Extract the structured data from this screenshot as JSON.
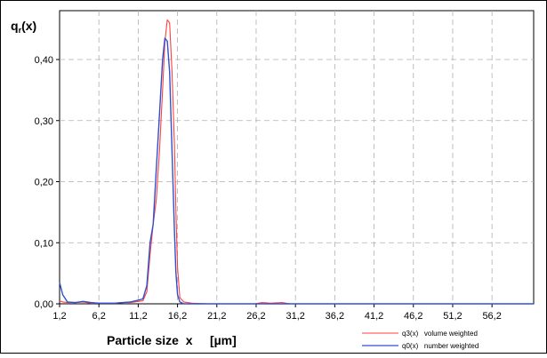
{
  "chart_data": {
    "type": "line",
    "ylabel_main": "q",
    "ylabel_sub": "r",
    "ylabel_tail": "(x)",
    "xlabel": "Particle size  x     [µm]",
    "xlim": [
      1.2,
      61.5
    ],
    "ylim": [
      0,
      0.48
    ],
    "xticks": [
      "1,2",
      "6,2",
      "11,2",
      "16,2",
      "21,2",
      "26,2",
      "31,2",
      "36,2",
      "41,2",
      "46,2",
      "51,2",
      "56,2"
    ],
    "xtick_values": [
      1.2,
      6.2,
      11.2,
      16.2,
      21.2,
      26.2,
      31.2,
      36.2,
      41.2,
      46.2,
      51.2,
      56.2
    ],
    "yticks": [
      "0,00",
      "0,10",
      "0,20",
      "0,30",
      "0,40"
    ],
    "ytick_values": [
      0,
      0.1,
      0.2,
      0.3,
      0.4
    ],
    "grid": true,
    "legend_position": "bottom-right",
    "series": [
      {
        "name": "q3(x)   volume weighted",
        "color": "#ff4040",
        "x": [
          1.2,
          1.6,
          2.2,
          3.2,
          4.2,
          5.2,
          6.2,
          7.2,
          8.2,
          9.2,
          10.2,
          11.2,
          11.8,
          12.3,
          12.7,
          13.1,
          13.5,
          13.9,
          14.3,
          14.6,
          14.9,
          15.2,
          15.5,
          15.8,
          16.0,
          16.2,
          16.5,
          17.0,
          18.0,
          20.0,
          26.0,
          27.0,
          28.0,
          29.5,
          30.5,
          61.5
        ],
        "y": [
          0.005,
          0.003,
          0.002,
          0.002,
          0.003,
          0.001,
          0.001,
          0.001,
          0.001,
          0.002,
          0.002,
          0.004,
          0.005,
          0.02,
          0.08,
          0.13,
          0.17,
          0.25,
          0.35,
          0.43,
          0.465,
          0.46,
          0.38,
          0.26,
          0.15,
          0.06,
          0.01,
          0.003,
          0.001,
          0.0,
          0.0,
          0.002,
          0.001,
          0.002,
          0.0,
          0.0
        ]
      },
      {
        "name": "q0(x)   number weighted",
        "color": "#3050d0",
        "x": [
          1.2,
          1.6,
          2.2,
          3.2,
          4.2,
          5.2,
          6.2,
          7.2,
          8.2,
          9.2,
          10.2,
          11.2,
          11.8,
          12.3,
          12.7,
          13.1,
          13.5,
          13.9,
          14.3,
          14.6,
          14.9,
          15.2,
          15.5,
          15.8,
          16.0,
          16.2,
          16.5,
          17.0,
          18.0,
          20.0,
          61.5
        ],
        "y": [
          0.035,
          0.015,
          0.003,
          0.002,
          0.004,
          0.002,
          0.001,
          0.001,
          0.001,
          0.002,
          0.003,
          0.006,
          0.008,
          0.03,
          0.1,
          0.13,
          0.22,
          0.31,
          0.4,
          0.435,
          0.43,
          0.38,
          0.25,
          0.12,
          0.05,
          0.015,
          0.003,
          0.0,
          0.0,
          0.0,
          0.0
        ]
      }
    ]
  }
}
